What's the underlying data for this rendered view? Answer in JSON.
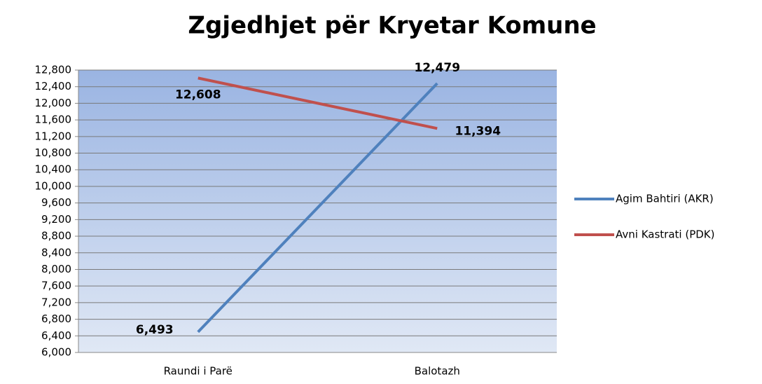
{
  "chart_data": {
    "type": "line",
    "title": "Zgjedhjet për Kryetar Komune",
    "categories": [
      "Raundi i Parë",
      "Balotazh"
    ],
    "series": [
      {
        "name": "Agim Bahtiri (AKR)",
        "color": "#4f81bd",
        "values": [
          6493,
          12479
        ],
        "value_labels": [
          "6,493",
          "12,479"
        ]
      },
      {
        "name": "Avni Kastrati (PDK)",
        "color": "#c0504d",
        "values": [
          12608,
          11394
        ],
        "value_labels": [
          "12,608",
          "11,394"
        ]
      }
    ],
    "ylim": [
      6000,
      12800
    ],
    "yticks": [
      {
        "value": 6000,
        "label": "6,000"
      },
      {
        "value": 6400,
        "label": "6,400"
      },
      {
        "value": 6800,
        "label": "6,800"
      },
      {
        "value": 7200,
        "label": "7,200"
      },
      {
        "value": 7600,
        "label": "7,600"
      },
      {
        "value": 8000,
        "label": "8,000"
      },
      {
        "value": 8400,
        "label": "8,400"
      },
      {
        "value": 8800,
        "label": "8,800"
      },
      {
        "value": 9200,
        "label": "9,200"
      },
      {
        "value": 9600,
        "label": "9,600"
      },
      {
        "value": 10000,
        "label": "10,000"
      },
      {
        "value": 10400,
        "label": "10,400"
      },
      {
        "value": 10800,
        "label": "10,800"
      },
      {
        "value": 11200,
        "label": "11,200"
      },
      {
        "value": 11600,
        "label": "11,600"
      },
      {
        "value": 12000,
        "label": "12,000"
      },
      {
        "value": 12400,
        "label": "12,400"
      },
      {
        "value": 12800,
        "label": "12,800"
      }
    ],
    "grid": true,
    "legend": "right"
  }
}
